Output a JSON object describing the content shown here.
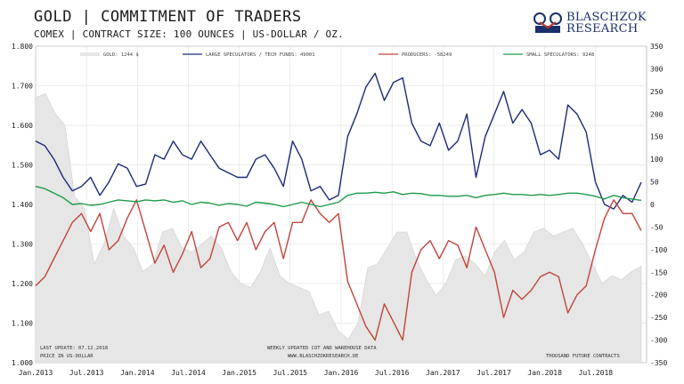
{
  "header": {
    "title": "GOLD | COMMITMENT OF TRADERS",
    "subtitle": "COMEX | CONTRACT SIZE: 100 OUNCES | US-DOLLAR / OZ.",
    "logo_line1": "BLASCHZOK",
    "logo_line2": "RESEARCH"
  },
  "notes": {
    "last_update": "LAST UPDATE: 07.12.2018",
    "price_unit": "PRICE  IN  US-DOLLAR",
    "source_line1": "WEEKLY  UPDATED  COT  AND  WAREHOUSE  DATA",
    "source_line2": "WWW.BLASCHZOKRESEARCH.DE",
    "right_unit": "THOUSAND  FUTURE  CONTRACTS"
  },
  "chart_data": {
    "type": "line",
    "x_start": "2013-01",
    "x_end": "2018-12",
    "x_tick_labels": [
      "Jan.2013",
      "Jul.2013",
      "Jan.2014",
      "Jul.2014",
      "Jan.2015",
      "Jul.2015",
      "Jan.2016",
      "Jul.2016",
      "Jan.2017",
      "Jul.2017",
      "Jan.2018",
      "Jul.2018"
    ],
    "y_left": {
      "min": 1000,
      "max": 1800,
      "ticks": [
        1000,
        1100,
        1200,
        1300,
        1400,
        1500,
        1600,
        1700,
        1800
      ],
      "tick_labels": [
        "1.000",
        "1.100",
        "1.200",
        "1.300",
        "1.400",
        "1.500",
        "1.600",
        "1.700",
        "1.800"
      ]
    },
    "y_right": {
      "min": -350,
      "max": 350,
      "ticks": [
        -350,
        -300,
        -250,
        -200,
        -150,
        -100,
        -50,
        0,
        50,
        100,
        150,
        200,
        250,
        300,
        350
      ],
      "tick_labels": [
        "-350",
        "-300",
        "-250",
        "-200",
        "-150",
        "-100",
        "-50",
        "0",
        "50",
        "100",
        "150",
        "200",
        "250",
        "300",
        "350"
      ]
    },
    "grid": true,
    "legend": "top",
    "series": [
      {
        "name": "GOLD: 1244 $",
        "axis": "left",
        "style": "area",
        "color": "#e6e6e6",
        "points": [
          [
            0,
            1670
          ],
          [
            1,
            1680
          ],
          [
            2,
            1630
          ],
          [
            3,
            1600
          ],
          [
            4,
            1420
          ],
          [
            5,
            1390
          ],
          [
            6,
            1250
          ],
          [
            7,
            1300
          ],
          [
            8,
            1390
          ],
          [
            9,
            1320
          ],
          [
            10,
            1290
          ],
          [
            11,
            1230
          ],
          [
            12,
            1250
          ],
          [
            13,
            1330
          ],
          [
            14,
            1340
          ],
          [
            15,
            1290
          ],
          [
            16,
            1280
          ],
          [
            17,
            1300
          ],
          [
            18,
            1320
          ],
          [
            19,
            1290
          ],
          [
            20,
            1230
          ],
          [
            21,
            1200
          ],
          [
            22,
            1190
          ],
          [
            23,
            1230
          ],
          [
            24,
            1290
          ],
          [
            25,
            1220
          ],
          [
            26,
            1200
          ],
          [
            27,
            1190
          ],
          [
            28,
            1180
          ],
          [
            29,
            1120
          ],
          [
            30,
            1130
          ],
          [
            31,
            1080
          ],
          [
            32,
            1060
          ],
          [
            33,
            1100
          ],
          [
            34,
            1240
          ],
          [
            35,
            1250
          ],
          [
            36,
            1290
          ],
          [
            37,
            1330
          ],
          [
            38,
            1330
          ],
          [
            39,
            1260
          ],
          [
            40,
            1210
          ],
          [
            41,
            1170
          ],
          [
            42,
            1200
          ],
          [
            43,
            1260
          ],
          [
            44,
            1270
          ],
          [
            45,
            1250
          ],
          [
            46,
            1220
          ],
          [
            47,
            1280
          ],
          [
            48,
            1310
          ],
          [
            49,
            1260
          ],
          [
            50,
            1280
          ],
          [
            51,
            1330
          ],
          [
            52,
            1340
          ],
          [
            53,
            1320
          ],
          [
            54,
            1330
          ],
          [
            55,
            1340
          ],
          [
            56,
            1300
          ],
          [
            57,
            1250
          ],
          [
            58,
            1200
          ],
          [
            59,
            1220
          ],
          [
            60,
            1210
          ],
          [
            61,
            1230
          ],
          [
            62,
            1244
          ]
        ]
      },
      {
        "name": "LARGE SPECULATORS / TECH FUNDS: 49001",
        "axis": "right",
        "style": "line",
        "color": "#1f2a78",
        "points": [
          [
            0,
            140
          ],
          [
            1,
            130
          ],
          [
            2,
            100
          ],
          [
            3,
            60
          ],
          [
            4,
            30
          ],
          [
            5,
            40
          ],
          [
            6,
            60
          ],
          [
            7,
            20
          ],
          [
            8,
            50
          ],
          [
            9,
            90
          ],
          [
            10,
            80
          ],
          [
            11,
            40
          ],
          [
            12,
            45
          ],
          [
            13,
            110
          ],
          [
            14,
            100
          ],
          [
            15,
            140
          ],
          [
            16,
            110
          ],
          [
            17,
            100
          ],
          [
            18,
            140
          ],
          [
            19,
            110
          ],
          [
            20,
            80
          ],
          [
            21,
            70
          ],
          [
            22,
            60
          ],
          [
            23,
            60
          ],
          [
            24,
            100
          ],
          [
            25,
            110
          ],
          [
            26,
            80
          ],
          [
            27,
            40
          ],
          [
            28,
            140
          ],
          [
            29,
            100
          ],
          [
            30,
            30
          ],
          [
            31,
            40
          ],
          [
            32,
            10
          ],
          [
            33,
            20
          ],
          [
            34,
            150
          ],
          [
            35,
            200
          ],
          [
            36,
            260
          ],
          [
            37,
            290
          ],
          [
            38,
            230
          ],
          [
            39,
            270
          ],
          [
            40,
            280
          ],
          [
            41,
            180
          ],
          [
            42,
            140
          ],
          [
            43,
            130
          ],
          [
            44,
            180
          ],
          [
            45,
            120
          ],
          [
            46,
            140
          ],
          [
            47,
            200
          ],
          [
            48,
            60
          ],
          [
            49,
            150
          ],
          [
            50,
            200
          ],
          [
            51,
            250
          ],
          [
            52,
            180
          ],
          [
            53,
            210
          ],
          [
            54,
            180
          ],
          [
            55,
            110
          ],
          [
            56,
            120
          ],
          [
            57,
            100
          ],
          [
            58,
            220
          ],
          [
            59,
            200
          ],
          [
            60,
            160
          ],
          [
            61,
            50
          ],
          [
            62,
            0
          ],
          [
            63,
            -10
          ],
          [
            64,
            20
          ],
          [
            65,
            5
          ],
          [
            66,
            49
          ]
        ]
      },
      {
        "name": "PRODUCERS: -58249",
        "axis": "right",
        "style": "line",
        "color": "#c0443c",
        "points": [
          [
            0,
            -180
          ],
          [
            1,
            -160
          ],
          [
            2,
            -120
          ],
          [
            3,
            -80
          ],
          [
            4,
            -40
          ],
          [
            5,
            -20
          ],
          [
            6,
            -60
          ],
          [
            7,
            -20
          ],
          [
            8,
            -100
          ],
          [
            9,
            -80
          ],
          [
            10,
            -30
          ],
          [
            11,
            10
          ],
          [
            12,
            -60
          ],
          [
            13,
            -130
          ],
          [
            14,
            -90
          ],
          [
            15,
            -150
          ],
          [
            16,
            -110
          ],
          [
            17,
            -60
          ],
          [
            18,
            -140
          ],
          [
            19,
            -120
          ],
          [
            20,
            -50
          ],
          [
            21,
            -40
          ],
          [
            22,
            -80
          ],
          [
            23,
            -40
          ],
          [
            24,
            -100
          ],
          [
            25,
            -60
          ],
          [
            26,
            -40
          ],
          [
            27,
            -120
          ],
          [
            28,
            -40
          ],
          [
            29,
            -40
          ],
          [
            30,
            10
          ],
          [
            31,
            -20
          ],
          [
            32,
            -40
          ],
          [
            33,
            -20
          ],
          [
            34,
            -170
          ],
          [
            35,
            -220
          ],
          [
            36,
            -270
          ],
          [
            37,
            -300
          ],
          [
            38,
            -220
          ],
          [
            39,
            -260
          ],
          [
            40,
            -300
          ],
          [
            41,
            -150
          ],
          [
            42,
            -100
          ],
          [
            43,
            -80
          ],
          [
            44,
            -120
          ],
          [
            45,
            -80
          ],
          [
            46,
            -90
          ],
          [
            47,
            -140
          ],
          [
            48,
            -50
          ],
          [
            49,
            -100
          ],
          [
            50,
            -150
          ],
          [
            51,
            -250
          ],
          [
            52,
            -190
          ],
          [
            53,
            -210
          ],
          [
            54,
            -190
          ],
          [
            55,
            -160
          ],
          [
            56,
            -150
          ],
          [
            57,
            -160
          ],
          [
            58,
            -240
          ],
          [
            59,
            -200
          ],
          [
            60,
            -180
          ],
          [
            61,
            -100
          ],
          [
            62,
            -30
          ],
          [
            63,
            10
          ],
          [
            64,
            -20
          ],
          [
            65,
            -20
          ],
          [
            66,
            -58
          ]
        ]
      },
      {
        "name": "SMALL SPECULATORS: 9248",
        "axis": "right",
        "style": "line",
        "color": "#1f9a4c",
        "points": [
          [
            0,
            40
          ],
          [
            1,
            35
          ],
          [
            2,
            25
          ],
          [
            3,
            15
          ],
          [
            4,
            0
          ],
          [
            5,
            2
          ],
          [
            6,
            -2
          ],
          [
            7,
            0
          ],
          [
            8,
            5
          ],
          [
            9,
            10
          ],
          [
            10,
            8
          ],
          [
            11,
            6
          ],
          [
            12,
            10
          ],
          [
            13,
            8
          ],
          [
            14,
            10
          ],
          [
            15,
            5
          ],
          [
            16,
            8
          ],
          [
            17,
            0
          ],
          [
            18,
            5
          ],
          [
            19,
            3
          ],
          [
            20,
            -2
          ],
          [
            21,
            2
          ],
          [
            22,
            0
          ],
          [
            23,
            -4
          ],
          [
            24,
            5
          ],
          [
            25,
            3
          ],
          [
            26,
            0
          ],
          [
            27,
            -5
          ],
          [
            28,
            0
          ],
          [
            29,
            5
          ],
          [
            30,
            0
          ],
          [
            31,
            -5
          ],
          [
            32,
            0
          ],
          [
            33,
            5
          ],
          [
            34,
            20
          ],
          [
            35,
            25
          ],
          [
            36,
            25
          ],
          [
            37,
            27
          ],
          [
            38,
            25
          ],
          [
            39,
            28
          ],
          [
            40,
            22
          ],
          [
            41,
            25
          ],
          [
            42,
            24
          ],
          [
            43,
            20
          ],
          [
            44,
            20
          ],
          [
            45,
            18
          ],
          [
            46,
            18
          ],
          [
            47,
            20
          ],
          [
            48,
            15
          ],
          [
            49,
            20
          ],
          [
            50,
            22
          ],
          [
            51,
            25
          ],
          [
            52,
            22
          ],
          [
            53,
            22
          ],
          [
            54,
            20
          ],
          [
            55,
            22
          ],
          [
            56,
            20
          ],
          [
            57,
            22
          ],
          [
            58,
            25
          ],
          [
            59,
            25
          ],
          [
            60,
            22
          ],
          [
            61,
            18
          ],
          [
            62,
            12
          ],
          [
            63,
            20
          ],
          [
            64,
            15
          ],
          [
            65,
            12
          ],
          [
            66,
            9
          ]
        ]
      }
    ]
  }
}
